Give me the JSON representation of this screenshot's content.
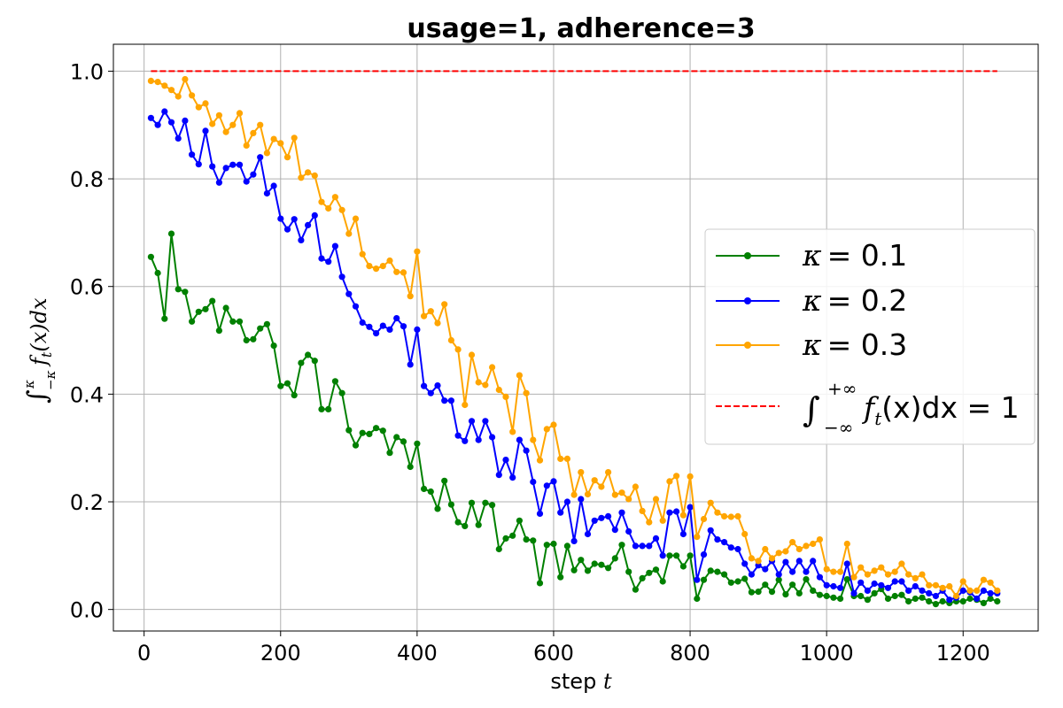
{
  "chart_data": {
    "type": "line",
    "title": "usage=1, adherence=3",
    "xlabel": {
      "prefix": "step ",
      "var": "t"
    },
    "ylabel": {
      "integral": "∫",
      "upper": "κ",
      "lower": "−κ",
      "body": "f",
      "sub": "t",
      "rest": "(x)dx"
    },
    "xlim": [
      -45,
      1310
    ],
    "ylim": [
      -0.04,
      1.05
    ],
    "xticks": [
      0,
      200,
      400,
      600,
      800,
      1000,
      1200
    ],
    "xtick_labels": [
      "0",
      "200",
      "400",
      "600",
      "800",
      "1000",
      "1200"
    ],
    "yticks": [
      0.0,
      0.2,
      0.4,
      0.6,
      0.8,
      1.0
    ],
    "ytick_labels": [
      "0.0",
      "0.2",
      "0.4",
      "0.6",
      "0.8",
      "1.0"
    ],
    "grid": true,
    "legend_position": "center-right",
    "series": [
      {
        "name": "κ =  0.1",
        "legend_kappa": "κ",
        "legend_value": "=  0.1",
        "color": "#008000",
        "marker": "circle",
        "x": [
          10,
          20,
          30,
          40,
          50,
          60,
          70,
          80,
          90,
          100,
          110,
          120,
          130,
          140,
          150,
          160,
          170,
          180,
          190,
          200,
          210,
          220,
          230,
          240,
          250,
          260,
          270,
          280,
          290,
          300,
          310,
          320,
          330,
          340,
          350,
          360,
          370,
          380,
          390,
          400,
          410,
          420,
          430,
          440,
          450,
          460,
          470,
          480,
          490,
          500,
          510,
          520,
          530,
          540,
          550,
          560,
          570,
          580,
          590,
          600,
          610,
          620,
          630,
          640,
          650,
          660,
          670,
          680,
          690,
          700,
          710,
          720,
          730,
          740,
          750,
          760,
          770,
          780,
          790,
          800,
          810,
          820,
          830,
          840,
          850,
          860,
          870,
          880,
          890,
          900,
          910,
          920,
          930,
          940,
          950,
          960,
          970,
          980,
          990,
          1000,
          1010,
          1020,
          1030,
          1040,
          1050,
          1060,
          1070,
          1080,
          1090,
          1100,
          1110,
          1120,
          1130,
          1140,
          1150,
          1160,
          1170,
          1180,
          1190,
          1200,
          1210,
          1220,
          1230,
          1240,
          1250
        ],
        "y": [
          0.655,
          0.625,
          0.54,
          0.698,
          0.595,
          0.59,
          0.535,
          0.553,
          0.558,
          0.573,
          0.518,
          0.56,
          0.535,
          0.535,
          0.5,
          0.502,
          0.522,
          0.53,
          0.49,
          0.415,
          0.42,
          0.398,
          0.458,
          0.473,
          0.462,
          0.372,
          0.372,
          0.424,
          0.402,
          0.333,
          0.305,
          0.328,
          0.326,
          0.337,
          0.332,
          0.291,
          0.32,
          0.312,
          0.265,
          0.308,
          0.224,
          0.219,
          0.187,
          0.239,
          0.195,
          0.162,
          0.155,
          0.198,
          0.157,
          0.198,
          0.194,
          0.112,
          0.132,
          0.137,
          0.165,
          0.13,
          0.128,
          0.049,
          0.12,
          0.122,
          0.06,
          0.118,
          0.073,
          0.092,
          0.072,
          0.085,
          0.083,
          0.077,
          0.095,
          0.12,
          0.07,
          0.037,
          0.058,
          0.068,
          0.074,
          0.052,
          0.1,
          0.1,
          0.08,
          0.1,
          0.02,
          0.055,
          0.072,
          0.07,
          0.065,
          0.05,
          0.052,
          0.057,
          0.032,
          0.033,
          0.046,
          0.033,
          0.055,
          0.028,
          0.046,
          0.03,
          0.056,
          0.035,
          0.027,
          0.025,
          0.022,
          0.02,
          0.056,
          0.025,
          0.025,
          0.018,
          0.03,
          0.038,
          0.02,
          0.025,
          0.027,
          0.015,
          0.02,
          0.022,
          0.015,
          0.01,
          0.015,
          0.012,
          0.015,
          0.015,
          0.02,
          0.018,
          0.012,
          0.02,
          0.015
        ]
      },
      {
        "name": "κ =  0.2",
        "legend_kappa": "κ",
        "legend_value": "=  0.2",
        "color": "#0000ff",
        "marker": "circle",
        "x": [
          10,
          20,
          30,
          40,
          50,
          60,
          70,
          80,
          90,
          100,
          110,
          120,
          130,
          140,
          150,
          160,
          170,
          180,
          190,
          200,
          210,
          220,
          230,
          240,
          250,
          260,
          270,
          280,
          290,
          300,
          310,
          320,
          330,
          340,
          350,
          360,
          370,
          380,
          390,
          400,
          410,
          420,
          430,
          440,
          450,
          460,
          470,
          480,
          490,
          500,
          510,
          520,
          530,
          540,
          550,
          560,
          570,
          580,
          590,
          600,
          610,
          620,
          630,
          640,
          650,
          660,
          670,
          680,
          690,
          700,
          710,
          720,
          730,
          740,
          750,
          760,
          770,
          780,
          790,
          800,
          810,
          820,
          830,
          840,
          850,
          860,
          870,
          880,
          890,
          900,
          910,
          920,
          930,
          940,
          950,
          960,
          970,
          980,
          990,
          1000,
          1010,
          1020,
          1030,
          1040,
          1050,
          1060,
          1070,
          1080,
          1090,
          1100,
          1110,
          1120,
          1130,
          1140,
          1150,
          1160,
          1170,
          1180,
          1190,
          1200,
          1210,
          1220,
          1230,
          1240,
          1250
        ],
        "y": [
          0.913,
          0.9,
          0.925,
          0.905,
          0.875,
          0.908,
          0.845,
          0.827,
          0.889,
          0.823,
          0.793,
          0.82,
          0.826,
          0.826,
          0.795,
          0.808,
          0.84,
          0.773,
          0.787,
          0.726,
          0.706,
          0.725,
          0.686,
          0.714,
          0.732,
          0.652,
          0.646,
          0.675,
          0.618,
          0.586,
          0.563,
          0.533,
          0.525,
          0.513,
          0.527,
          0.52,
          0.541,
          0.526,
          0.455,
          0.52,
          0.415,
          0.402,
          0.416,
          0.388,
          0.388,
          0.323,
          0.313,
          0.35,
          0.315,
          0.35,
          0.32,
          0.25,
          0.278,
          0.245,
          0.315,
          0.295,
          0.237,
          0.178,
          0.23,
          0.238,
          0.18,
          0.2,
          0.127,
          0.205,
          0.14,
          0.165,
          0.17,
          0.173,
          0.148,
          0.18,
          0.145,
          0.118,
          0.118,
          0.118,
          0.132,
          0.1,
          0.18,
          0.182,
          0.14,
          0.19,
          0.055,
          0.102,
          0.147,
          0.13,
          0.125,
          0.115,
          0.112,
          0.085,
          0.065,
          0.082,
          0.075,
          0.09,
          0.065,
          0.088,
          0.07,
          0.09,
          0.07,
          0.09,
          0.06,
          0.045,
          0.043,
          0.04,
          0.085,
          0.03,
          0.05,
          0.035,
          0.048,
          0.045,
          0.04,
          0.052,
          0.052,
          0.035,
          0.043,
          0.035,
          0.03,
          0.025,
          0.035,
          0.018,
          0.022,
          0.035,
          0.032,
          0.02,
          0.035,
          0.03,
          0.03
        ]
      },
      {
        "name": "κ =  0.3",
        "legend_kappa": "κ",
        "legend_value": "=  0.3",
        "color": "#ffa500",
        "marker": "circle",
        "x": [
          10,
          20,
          30,
          40,
          50,
          60,
          70,
          80,
          90,
          100,
          110,
          120,
          130,
          140,
          150,
          160,
          170,
          180,
          190,
          200,
          210,
          220,
          230,
          240,
          250,
          260,
          270,
          280,
          290,
          300,
          310,
          320,
          330,
          340,
          350,
          360,
          370,
          380,
          390,
          400,
          410,
          420,
          430,
          440,
          450,
          460,
          470,
          480,
          490,
          500,
          510,
          520,
          530,
          540,
          550,
          560,
          570,
          580,
          590,
          600,
          610,
          620,
          630,
          640,
          650,
          660,
          670,
          680,
          690,
          700,
          710,
          720,
          730,
          740,
          750,
          760,
          770,
          780,
          790,
          800,
          810,
          820,
          830,
          840,
          850,
          860,
          870,
          880,
          890,
          900,
          910,
          920,
          930,
          940,
          950,
          960,
          970,
          980,
          990,
          1000,
          1010,
          1020,
          1030,
          1040,
          1050,
          1060,
          1070,
          1080,
          1090,
          1100,
          1110,
          1120,
          1130,
          1140,
          1150,
          1160,
          1170,
          1180,
          1190,
          1200,
          1210,
          1220,
          1230,
          1240,
          1250
        ],
        "y": [
          0.982,
          0.98,
          0.973,
          0.965,
          0.953,
          0.985,
          0.955,
          0.933,
          0.94,
          0.902,
          0.918,
          0.887,
          0.9,
          0.922,
          0.862,
          0.885,
          0.9,
          0.848,
          0.874,
          0.866,
          0.84,
          0.876,
          0.802,
          0.812,
          0.806,
          0.757,
          0.745,
          0.766,
          0.742,
          0.698,
          0.726,
          0.66,
          0.638,
          0.633,
          0.638,
          0.648,
          0.627,
          0.626,
          0.582,
          0.665,
          0.545,
          0.554,
          0.532,
          0.567,
          0.5,
          0.483,
          0.38,
          0.473,
          0.422,
          0.417,
          0.45,
          0.408,
          0.395,
          0.33,
          0.435,
          0.402,
          0.315,
          0.277,
          0.335,
          0.343,
          0.28,
          0.28,
          0.213,
          0.255,
          0.214,
          0.24,
          0.228,
          0.255,
          0.213,
          0.217,
          0.205,
          0.228,
          0.183,
          0.162,
          0.205,
          0.165,
          0.238,
          0.248,
          0.175,
          0.247,
          0.135,
          0.168,
          0.198,
          0.18,
          0.173,
          0.172,
          0.173,
          0.14,
          0.095,
          0.09,
          0.112,
          0.095,
          0.105,
          0.108,
          0.125,
          0.112,
          0.118,
          0.122,
          0.13,
          0.075,
          0.07,
          0.07,
          0.122,
          0.06,
          0.078,
          0.065,
          0.072,
          0.078,
          0.065,
          0.07,
          0.085,
          0.065,
          0.058,
          0.065,
          0.045,
          0.045,
          0.04,
          0.043,
          0.025,
          0.052,
          0.035,
          0.035,
          0.055,
          0.05,
          0.035
        ]
      },
      {
        "name": "∫_{−∞}^{+∞} f_t(x)dx = 1",
        "legend_integral": "∫",
        "legend_upper": "+∞",
        "legend_lower": "−∞",
        "legend_body": "f",
        "legend_sub": "t",
        "legend_rest": "(x)dx = 1",
        "color": "#ff0000",
        "style": "dashed",
        "x": [
          10,
          1250
        ],
        "y": [
          1.0,
          1.0
        ]
      }
    ]
  }
}
